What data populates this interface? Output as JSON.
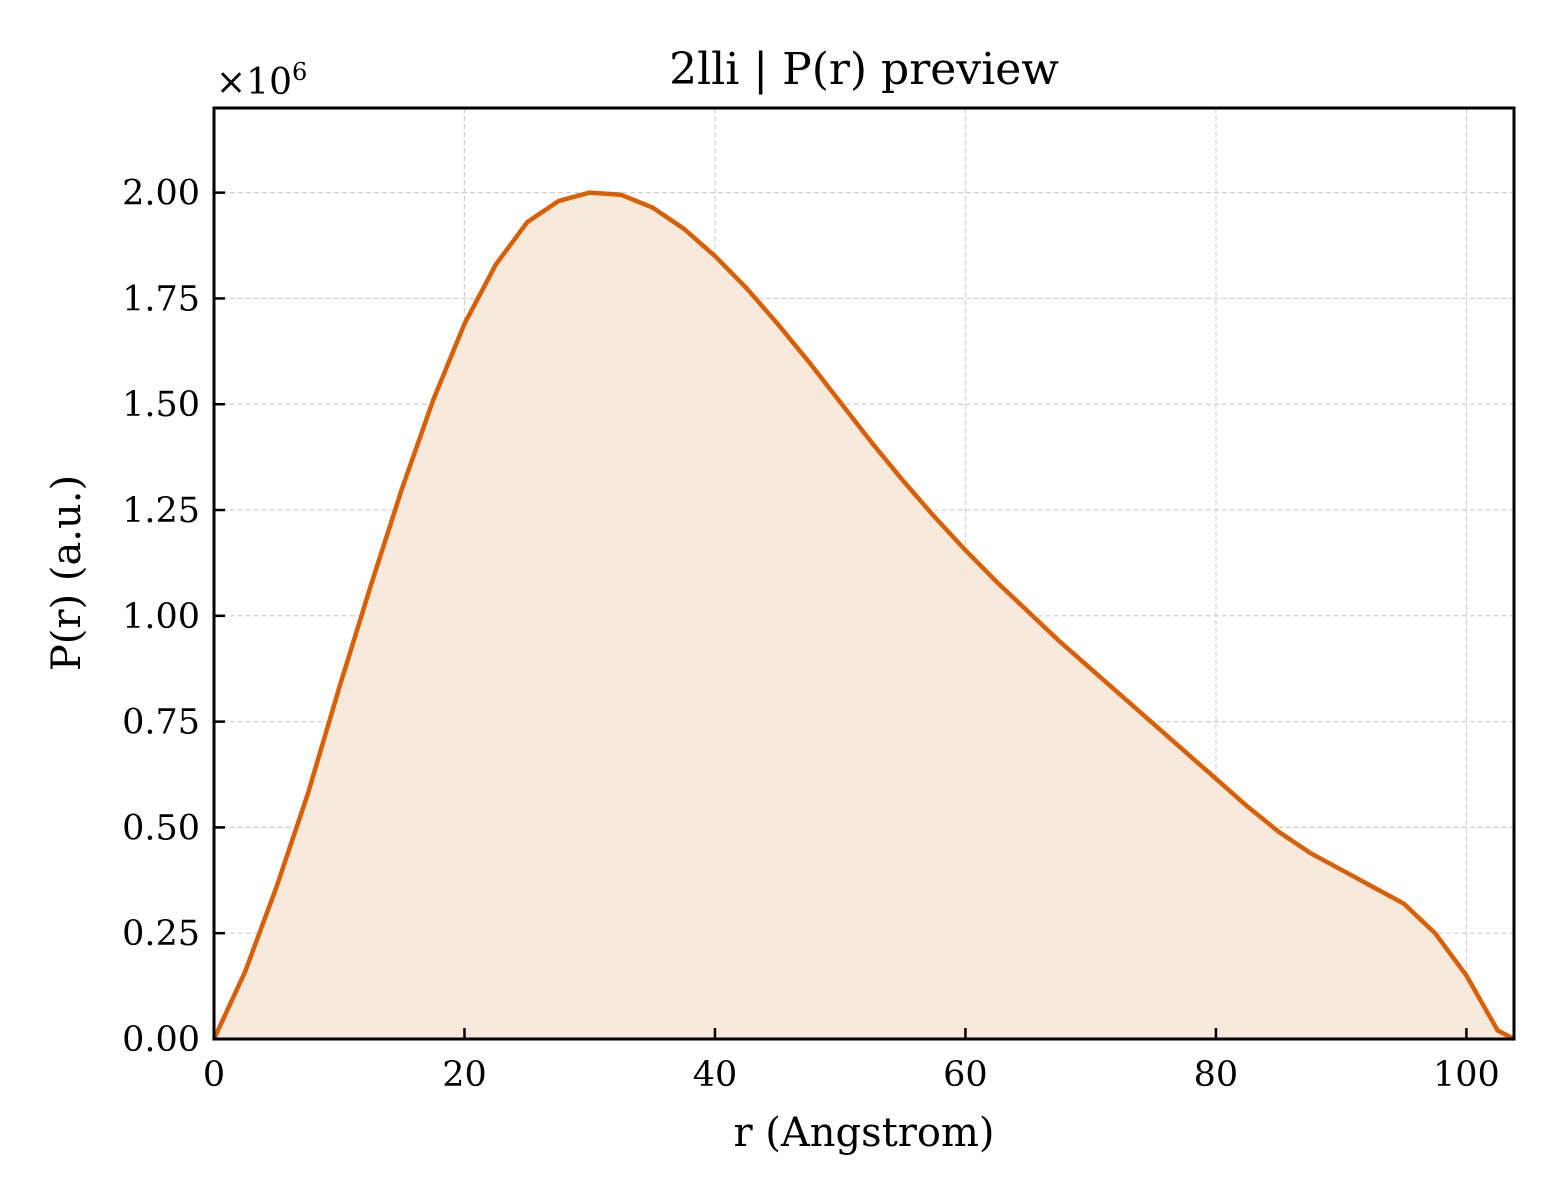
{
  "chart_data": {
    "type": "area",
    "title": "2lli | P(r) preview",
    "xlabel": "r (Angstrom)",
    "ylabel": "P(r) (a.u.)",
    "y_multiplier": "×10",
    "y_multiplier_exp": "6",
    "xlim": [
      0,
      103.8
    ],
    "ylim": [
      0,
      2.2
    ],
    "x_ticks": [
      0,
      20,
      40,
      60,
      80,
      100
    ],
    "x_tick_labels": [
      "0",
      "20",
      "40",
      "60",
      "80",
      "100"
    ],
    "y_ticks": [
      0,
      0.25,
      0.5,
      0.75,
      1.0,
      1.25,
      1.5,
      1.75,
      2.0
    ],
    "y_tick_labels": [
      "0.00",
      "0.25",
      "0.50",
      "0.75",
      "1.00",
      "1.25",
      "1.50",
      "1.75",
      "2.00"
    ],
    "grid": true,
    "colors": {
      "line": "#d95f02",
      "fill": "#f8e9dd",
      "grid": "#d0d0d0"
    },
    "series": [
      {
        "x": [
          0,
          2.5,
          5.0,
          7.5,
          10.0,
          12.5,
          15.0,
          17.5,
          20.0,
          22.5,
          25.0,
          27.5,
          30.0,
          32.5,
          35.0,
          37.5,
          40.0,
          42.5,
          45.0,
          47.5,
          50.0,
          52.5,
          55.0,
          57.5,
          60.0,
          62.5,
          65.0,
          67.5,
          70.0,
          72.5,
          75.0,
          77.5,
          80.0,
          82.5,
          85.0,
          87.5,
          90.0,
          92.5,
          95.0,
          97.5,
          100.0,
          102.5,
          103.8
        ],
        "y": [
          0,
          0.16,
          0.36,
          0.58,
          0.83,
          1.07,
          1.3,
          1.51,
          1.69,
          1.83,
          1.93,
          1.98,
          2.0,
          1.995,
          1.965,
          1.915,
          1.85,
          1.775,
          1.69,
          1.6,
          1.505,
          1.41,
          1.32,
          1.235,
          1.155,
          1.08,
          1.01,
          0.94,
          0.875,
          0.81,
          0.745,
          0.68,
          0.615,
          0.55,
          0.49,
          0.44,
          0.4,
          0.36,
          0.32,
          0.25,
          0.15,
          0.02,
          0
        ]
      }
    ]
  }
}
